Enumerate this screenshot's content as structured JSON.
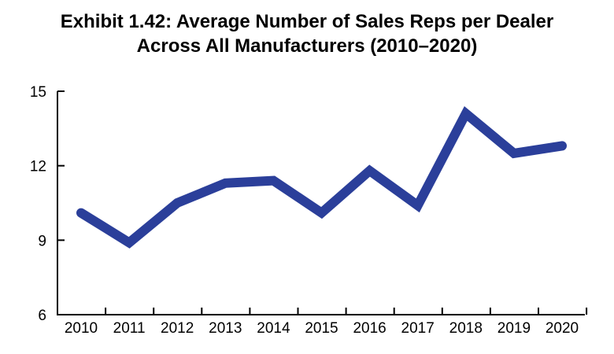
{
  "chart_data": {
    "type": "line",
    "title_lines": [
      "Exhibit 1.42: Average Number of Sales Reps per Dealer",
      "Across All Manufacturers (2010–2020)"
    ],
    "categories": [
      "2010",
      "2011",
      "2012",
      "2013",
      "2014",
      "2015",
      "2016",
      "2017",
      "2018",
      "2019",
      "2020"
    ],
    "series": [
      {
        "values": [
          10.1,
          8.9,
          10.5,
          11.3,
          11.4,
          10.1,
          11.8,
          10.4,
          14.1,
          12.5,
          12.8
        ]
      }
    ],
    "yticks": [
      6,
      9,
      12,
      15
    ],
    "ylim": [
      6,
      15
    ],
    "grid": false,
    "line_color": "#2b3f9a"
  }
}
